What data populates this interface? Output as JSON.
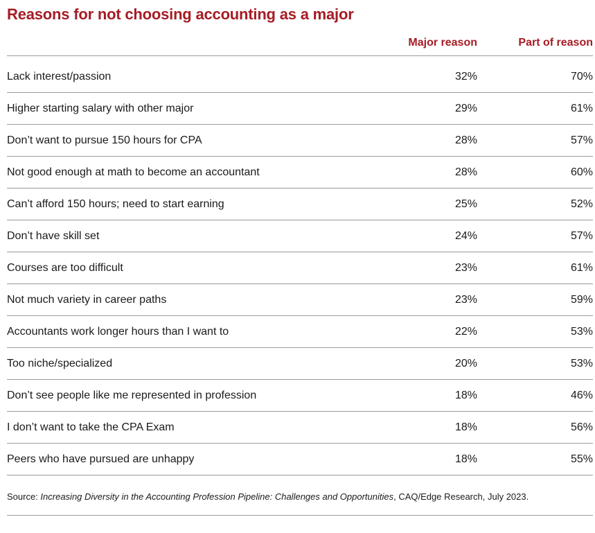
{
  "chart_data": {
    "type": "table",
    "title": "Reasons for not choosing accounting as a major",
    "columns": [
      "Major reason",
      "Part of reason"
    ],
    "rows": [
      {
        "label": "Lack interest/passion",
        "major": "32%",
        "part": "70%"
      },
      {
        "label": "Higher starting salary with other major",
        "major": "29%",
        "part": "61%"
      },
      {
        "label": "Don’t want to pursue 150 hours for CPA",
        "major": "28%",
        "part": "57%"
      },
      {
        "label": "Not good enough at math to become an accountant",
        "major": "28%",
        "part": "60%"
      },
      {
        "label": "Can’t afford 150 hours; need to start earning",
        "major": "25%",
        "part": "52%"
      },
      {
        "label": "Don’t have skill set",
        "major": "24%",
        "part": "57%"
      },
      {
        "label": "Courses are too difficult",
        "major": "23%",
        "part": "61%"
      },
      {
        "label": "Not much variety in career paths",
        "major": "23%",
        "part": "59%"
      },
      {
        "label": "Accountants work longer hours than I want to",
        "major": "22%",
        "part": "53%"
      },
      {
        "label": "Too niche/specialized",
        "major": "20%",
        "part": "53%"
      },
      {
        "label": "Don’t see people like me represented in profession",
        "major": "18%",
        "part": "46%"
      },
      {
        "label": "I don’t want to take the CPA Exam",
        "major": "18%",
        "part": "56%"
      },
      {
        "label": "Peers who have pursued are unhappy",
        "major": "18%",
        "part": "55%"
      }
    ]
  },
  "source": {
    "prefix": "Source: ",
    "publication": "Increasing Diversity in the Accounting Profession Pipeline: Challenges and Opportunities",
    "suffix": ", CAQ/Edge Research, July 2023."
  },
  "colors": {
    "accent": "#a51c24",
    "rule": "#9a9a9a",
    "text": "#1a1a1a"
  }
}
